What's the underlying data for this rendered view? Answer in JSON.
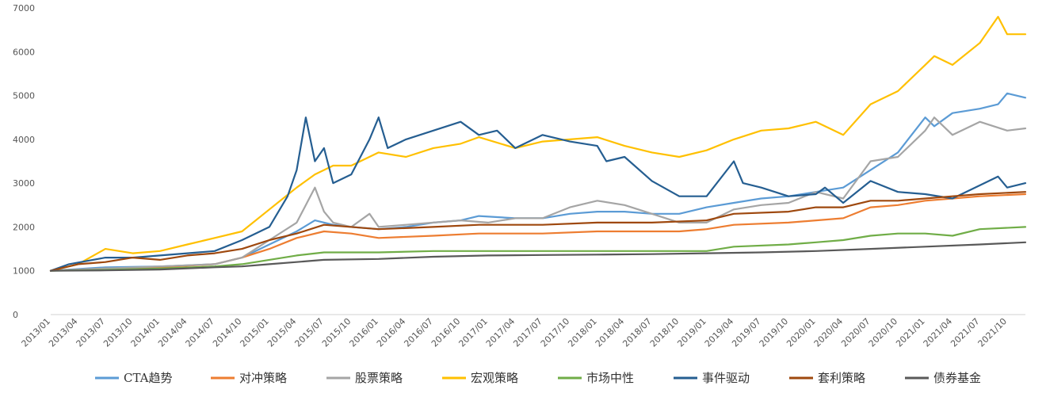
{
  "chart_data": {
    "type": "line",
    "title": "",
    "xlabel": "",
    "ylabel": "",
    "ylim": [
      0,
      7000
    ],
    "y_ticks": [
      0,
      1000,
      2000,
      3000,
      4000,
      5000,
      6000,
      7000
    ],
    "x_start": "2013/01",
    "x_end": "2021/12",
    "x_ticks": [
      "2013/01",
      "2013/04",
      "2013/07",
      "2013/10",
      "2014/01",
      "2014/04",
      "2014/07",
      "2014/10",
      "2015/01",
      "2015/04",
      "2015/07",
      "2015/10",
      "2016/01",
      "2016/04",
      "2016/07",
      "2016/10",
      "2017/01",
      "2017/04",
      "2017/07",
      "2017/10",
      "2018/01",
      "2018/04",
      "2018/07",
      "2018/10",
      "2019/01",
      "2019/04",
      "2019/07",
      "2019/10",
      "2020/01",
      "2020/04",
      "2020/07",
      "2020/10",
      "2021/01",
      "2021/04",
      "2021/07",
      "2021/10"
    ],
    "grid": false,
    "legend_position": "bottom",
    "series": [
      {
        "name": "CTA趋势",
        "color": "#5b9bd5",
        "points": [
          [
            "2013/01",
            1000
          ],
          [
            "2013/07",
            1080
          ],
          [
            "2014/01",
            1100
          ],
          [
            "2014/07",
            1150
          ],
          [
            "2014/10",
            1300
          ],
          [
            "2015/01",
            1600
          ],
          [
            "2015/04",
            1900
          ],
          [
            "2015/06",
            2150
          ],
          [
            "2015/08",
            2050
          ],
          [
            "2015/10",
            2000
          ],
          [
            "2016/01",
            1950
          ],
          [
            "2016/04",
            2000
          ],
          [
            "2016/07",
            2100
          ],
          [
            "2016/10",
            2150
          ],
          [
            "2016/12",
            2250
          ],
          [
            "2017/04",
            2200
          ],
          [
            "2017/07",
            2200
          ],
          [
            "2017/10",
            2300
          ],
          [
            "2018/01",
            2350
          ],
          [
            "2018/04",
            2350
          ],
          [
            "2018/07",
            2300
          ],
          [
            "2018/10",
            2300
          ],
          [
            "2019/01",
            2450
          ],
          [
            "2019/04",
            2550
          ],
          [
            "2019/07",
            2650
          ],
          [
            "2019/10",
            2700
          ],
          [
            "2020/01",
            2800
          ],
          [
            "2020/04",
            2900
          ],
          [
            "2020/07",
            3300
          ],
          [
            "2020/10",
            3700
          ],
          [
            "2021/01",
            4500
          ],
          [
            "2021/02",
            4300
          ],
          [
            "2021/04",
            4600
          ],
          [
            "2021/07",
            4700
          ],
          [
            "2021/09",
            4800
          ],
          [
            "2021/10",
            5050
          ],
          [
            "2021/12",
            4950
          ]
        ]
      },
      {
        "name": "对冲策略",
        "color": "#ed7d31",
        "points": [
          [
            "2013/01",
            1000
          ],
          [
            "2013/07",
            1050
          ],
          [
            "2014/01",
            1080
          ],
          [
            "2014/07",
            1150
          ],
          [
            "2014/10",
            1300
          ],
          [
            "2015/01",
            1500
          ],
          [
            "2015/04",
            1750
          ],
          [
            "2015/07",
            1900
          ],
          [
            "2015/10",
            1850
          ],
          [
            "2016/01",
            1750
          ],
          [
            "2016/07",
            1800
          ],
          [
            "2016/12",
            1850
          ],
          [
            "2017/07",
            1850
          ],
          [
            "2018/01",
            1900
          ],
          [
            "2018/07",
            1900
          ],
          [
            "2018/10",
            1900
          ],
          [
            "2019/01",
            1950
          ],
          [
            "2019/04",
            2050
          ],
          [
            "2019/10",
            2100
          ],
          [
            "2020/04",
            2200
          ],
          [
            "2020/07",
            2450
          ],
          [
            "2020/10",
            2500
          ],
          [
            "2021/01",
            2600
          ],
          [
            "2021/04",
            2650
          ],
          [
            "2021/07",
            2700
          ],
          [
            "2021/12",
            2750
          ]
        ]
      },
      {
        "name": "股票策略",
        "color": "#a5a5a5",
        "points": [
          [
            "2013/01",
            1000
          ],
          [
            "2013/07",
            1050
          ],
          [
            "2014/01",
            1100
          ],
          [
            "2014/07",
            1150
          ],
          [
            "2014/10",
            1300
          ],
          [
            "2015/01",
            1700
          ],
          [
            "2015/04",
            2100
          ],
          [
            "2015/06",
            2900
          ],
          [
            "2015/07",
            2350
          ],
          [
            "2015/08",
            2100
          ],
          [
            "2015/10",
            2000
          ],
          [
            "2015/12",
            2300
          ],
          [
            "2016/01",
            2000
          ],
          [
            "2016/04",
            2050
          ],
          [
            "2016/07",
            2100
          ],
          [
            "2016/10",
            2150
          ],
          [
            "2017/01",
            2100
          ],
          [
            "2017/04",
            2200
          ],
          [
            "2017/07",
            2200
          ],
          [
            "2017/10",
            2450
          ],
          [
            "2018/01",
            2600
          ],
          [
            "2018/04",
            2500
          ],
          [
            "2018/07",
            2300
          ],
          [
            "2018/10",
            2100
          ],
          [
            "2019/01",
            2100
          ],
          [
            "2019/04",
            2400
          ],
          [
            "2019/07",
            2500
          ],
          [
            "2019/10",
            2550
          ],
          [
            "2020/01",
            2800
          ],
          [
            "2020/04",
            2650
          ],
          [
            "2020/07",
            3500
          ],
          [
            "2020/10",
            3600
          ],
          [
            "2021/01",
            4200
          ],
          [
            "2021/02",
            4500
          ],
          [
            "2021/04",
            4100
          ],
          [
            "2021/07",
            4400
          ],
          [
            "2021/10",
            4200
          ],
          [
            "2021/12",
            4250
          ]
        ]
      },
      {
        "name": "宏观策略",
        "color": "#ffc000",
        "points": [
          [
            "2013/01",
            1000
          ],
          [
            "2013/04",
            1150
          ],
          [
            "2013/07",
            1500
          ],
          [
            "2013/10",
            1400
          ],
          [
            "2014/01",
            1450
          ],
          [
            "2014/04",
            1600
          ],
          [
            "2014/07",
            1750
          ],
          [
            "2014/10",
            1900
          ],
          [
            "2015/01",
            2400
          ],
          [
            "2015/04",
            2900
          ],
          [
            "2015/06",
            3200
          ],
          [
            "2015/08",
            3400
          ],
          [
            "2015/10",
            3400
          ],
          [
            "2016/01",
            3700
          ],
          [
            "2016/04",
            3600
          ],
          [
            "2016/07",
            3800
          ],
          [
            "2016/10",
            3900
          ],
          [
            "2016/12",
            4050
          ],
          [
            "2017/04",
            3800
          ],
          [
            "2017/07",
            3950
          ],
          [
            "2017/10",
            4000
          ],
          [
            "2018/01",
            4050
          ],
          [
            "2018/04",
            3850
          ],
          [
            "2018/07",
            3700
          ],
          [
            "2018/10",
            3600
          ],
          [
            "2019/01",
            3750
          ],
          [
            "2019/04",
            4000
          ],
          [
            "2019/07",
            4200
          ],
          [
            "2019/10",
            4250
          ],
          [
            "2020/01",
            4400
          ],
          [
            "2020/04",
            4100
          ],
          [
            "2020/07",
            4800
          ],
          [
            "2020/10",
            5100
          ],
          [
            "2021/01",
            5700
          ],
          [
            "2021/02",
            5900
          ],
          [
            "2021/04",
            5700
          ],
          [
            "2021/07",
            6200
          ],
          [
            "2021/09",
            6800
          ],
          [
            "2021/10",
            6400
          ],
          [
            "2021/12",
            6400
          ]
        ]
      },
      {
        "name": "市场中性",
        "color": "#70ad47",
        "points": [
          [
            "2013/01",
            1000
          ],
          [
            "2013/07",
            1020
          ],
          [
            "2014/01",
            1050
          ],
          [
            "2014/07",
            1100
          ],
          [
            "2014/10",
            1150
          ],
          [
            "2015/01",
            1250
          ],
          [
            "2015/04",
            1350
          ],
          [
            "2015/07",
            1420
          ],
          [
            "2016/01",
            1420
          ],
          [
            "2016/07",
            1450
          ],
          [
            "2017/01",
            1450
          ],
          [
            "2017/07",
            1450
          ],
          [
            "2018/01",
            1450
          ],
          [
            "2018/07",
            1450
          ],
          [
            "2019/01",
            1450
          ],
          [
            "2019/04",
            1550
          ],
          [
            "2019/10",
            1600
          ],
          [
            "2020/01",
            1650
          ],
          [
            "2020/04",
            1700
          ],
          [
            "2020/07",
            1800
          ],
          [
            "2020/10",
            1850
          ],
          [
            "2021/01",
            1850
          ],
          [
            "2021/04",
            1800
          ],
          [
            "2021/07",
            1950
          ],
          [
            "2021/12",
            2000
          ]
        ]
      },
      {
        "name": "事件驱动",
        "color": "#255e91",
        "points": [
          [
            "2013/01",
            1000
          ],
          [
            "2013/03",
            1150
          ],
          [
            "2013/07",
            1300
          ],
          [
            "2013/10",
            1300
          ],
          [
            "2014/01",
            1350
          ],
          [
            "2014/04",
            1400
          ],
          [
            "2014/07",
            1450
          ],
          [
            "2014/10",
            1700
          ],
          [
            "2015/01",
            2000
          ],
          [
            "2015/03",
            2700
          ],
          [
            "2015/04",
            3300
          ],
          [
            "2015/05",
            4500
          ],
          [
            "2015/06",
            3500
          ],
          [
            "2015/07",
            3800
          ],
          [
            "2015/08",
            3000
          ],
          [
            "2015/10",
            3200
          ],
          [
            "2015/12",
            4000
          ],
          [
            "2016/01",
            4500
          ],
          [
            "2016/02",
            3800
          ],
          [
            "2016/04",
            4000
          ],
          [
            "2016/07",
            4200
          ],
          [
            "2016/10",
            4400
          ],
          [
            "2016/12",
            4100
          ],
          [
            "2017/02",
            4200
          ],
          [
            "2017/04",
            3800
          ],
          [
            "2017/07",
            4100
          ],
          [
            "2017/10",
            3950
          ],
          [
            "2018/01",
            3850
          ],
          [
            "2018/02",
            3500
          ],
          [
            "2018/04",
            3600
          ],
          [
            "2018/07",
            3050
          ],
          [
            "2018/10",
            2700
          ],
          [
            "2019/01",
            2700
          ],
          [
            "2019/04",
            3500
          ],
          [
            "2019/05",
            3000
          ],
          [
            "2019/07",
            2900
          ],
          [
            "2019/10",
            2700
          ],
          [
            "2020/01",
            2750
          ],
          [
            "2020/02",
            2900
          ],
          [
            "2020/04",
            2550
          ],
          [
            "2020/07",
            3050
          ],
          [
            "2020/10",
            2800
          ],
          [
            "2021/01",
            2750
          ],
          [
            "2021/04",
            2650
          ],
          [
            "2021/07",
            2950
          ],
          [
            "2021/09",
            3150
          ],
          [
            "2021/10",
            2900
          ],
          [
            "2021/12",
            3000
          ]
        ]
      },
      {
        "name": "套利策略",
        "color": "#9e480e",
        "points": [
          [
            "2013/01",
            1000
          ],
          [
            "2013/04",
            1150
          ],
          [
            "2013/07",
            1200
          ],
          [
            "2013/10",
            1300
          ],
          [
            "2014/01",
            1250
          ],
          [
            "2014/04",
            1350
          ],
          [
            "2014/07",
            1400
          ],
          [
            "2014/10",
            1500
          ],
          [
            "2015/01",
            1700
          ],
          [
            "2015/04",
            1850
          ],
          [
            "2015/07",
            2050
          ],
          [
            "2016/01",
            1950
          ],
          [
            "2016/07",
            2000
          ],
          [
            "2016/12",
            2050
          ],
          [
            "2017/07",
            2050
          ],
          [
            "2018/01",
            2100
          ],
          [
            "2018/07",
            2100
          ],
          [
            "2019/01",
            2150
          ],
          [
            "2019/04",
            2300
          ],
          [
            "2019/10",
            2350
          ],
          [
            "2020/01",
            2450
          ],
          [
            "2020/04",
            2450
          ],
          [
            "2020/07",
            2600
          ],
          [
            "2020/10",
            2600
          ],
          [
            "2021/01",
            2650
          ],
          [
            "2021/04",
            2700
          ],
          [
            "2021/07",
            2750
          ],
          [
            "2021/12",
            2800
          ]
        ]
      },
      {
        "name": "债券基金",
        "color": "#595959",
        "points": [
          [
            "2013/01",
            1000
          ],
          [
            "2013/07",
            1010
          ],
          [
            "2014/01",
            1030
          ],
          [
            "2014/07",
            1080
          ],
          [
            "2014/10",
            1100
          ],
          [
            "2015/01",
            1150
          ],
          [
            "2015/07",
            1250
          ],
          [
            "2016/01",
            1270
          ],
          [
            "2016/07",
            1320
          ],
          [
            "2017/01",
            1350
          ],
          [
            "2017/07",
            1360
          ],
          [
            "2018/01",
            1370
          ],
          [
            "2018/07",
            1380
          ],
          [
            "2019/01",
            1400
          ],
          [
            "2019/07",
            1420
          ],
          [
            "2020/01",
            1450
          ],
          [
            "2020/07",
            1500
          ],
          [
            "2021/01",
            1550
          ],
          [
            "2021/07",
            1600
          ],
          [
            "2021/12",
            1650
          ]
        ]
      }
    ]
  }
}
